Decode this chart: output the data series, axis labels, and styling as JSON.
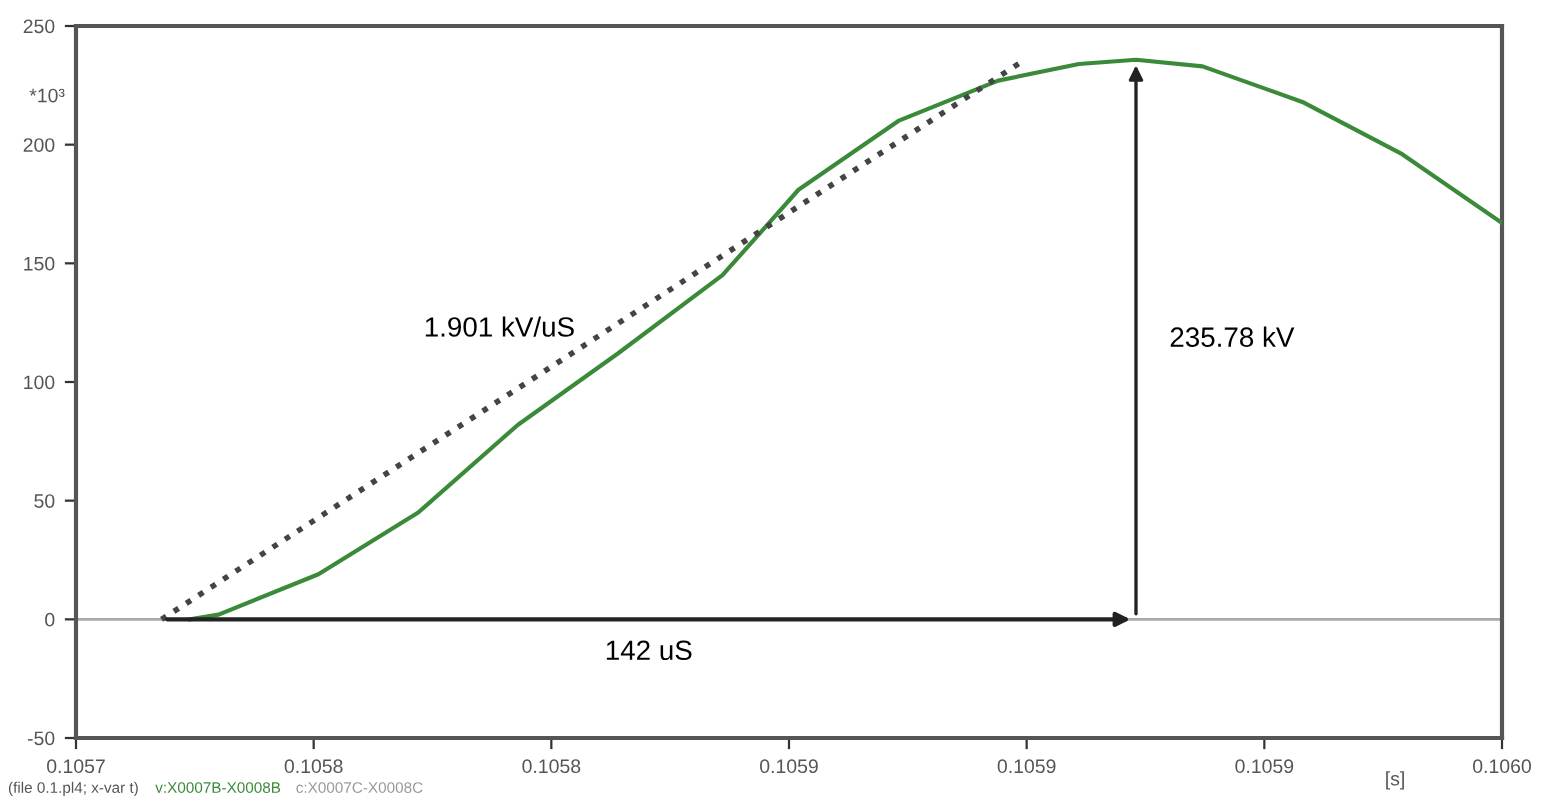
{
  "chart_data": {
    "type": "line",
    "xlabel": "[s]",
    "ylabel": "*10³",
    "xlim": [
      0.1057,
      0.106
    ],
    "ylim": [
      -50,
      250
    ],
    "xticks": [
      0.1057,
      {
        "value": 0.10575,
        "label": "0.1058"
      },
      0.1058,
      {
        "value": 0.10585,
        "label": "0.1059"
      },
      0.1059,
      {
        "value": 0.10595,
        "label": "0.1059"
      },
      {
        "value": 0.106,
        "label": "0.1060"
      }
    ],
    "yticks": [
      -50,
      0,
      50,
      100,
      150,
      200,
      250
    ],
    "grid": false,
    "series": [
      {
        "name": "v:X0007B-X0008B",
        "color": "#3a8a3a",
        "line_style": "solid",
        "x": [
          0.105724,
          0.10573,
          0.105751,
          0.105772,
          0.105793,
          0.105814,
          0.105836,
          0.105852,
          0.105873,
          0.105894,
          0.105911,
          0.105923,
          0.105937,
          0.105958,
          0.105979,
          0.106
        ],
        "values": [
          0,
          2,
          19,
          45,
          82,
          112,
          145,
          181,
          210,
          227,
          234,
          235.78,
          233,
          218,
          196,
          167
        ]
      },
      {
        "color": "#444444",
        "line_style": "dotted",
        "x": [
          0.105718,
          0.105899
        ],
        "values": [
          0,
          235
        ]
      }
    ],
    "ref_lines": [
      {
        "axis": "y",
        "value": 0,
        "color": "#aaaaaa"
      }
    ],
    "annotations": [
      "1.901 kV/uS",
      "142 uS",
      "235.78 kV",
      "(file 0.1.pl4; x-var t)",
      "c:X0007C-X0008C"
    ]
  }
}
